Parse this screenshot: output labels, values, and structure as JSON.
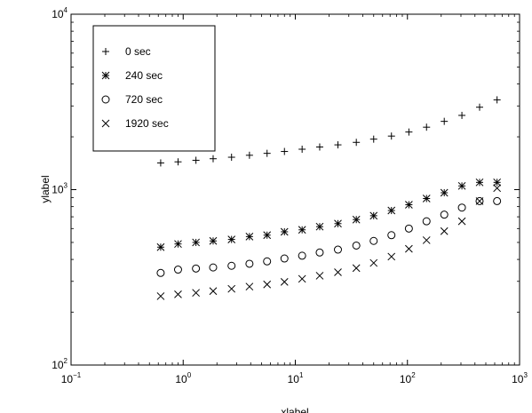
{
  "chart_data": {
    "type": "scatter",
    "xscale": "log",
    "yscale": "log",
    "xlim": [
      0.1,
      1000
    ],
    "ylim": [
      100,
      10000
    ],
    "xlabel": "xlabel",
    "ylabel": "ylabel",
    "x_ticks": [
      {
        "value": 0.1,
        "base": "10",
        "exp": "−1"
      },
      {
        "value": 1,
        "base": "10",
        "exp": "0"
      },
      {
        "value": 10,
        "base": "10",
        "exp": "1"
      },
      {
        "value": 100,
        "base": "10",
        "exp": "2"
      },
      {
        "value": 1000,
        "base": "10",
        "exp": "3"
      }
    ],
    "y_ticks": [
      {
        "value": 100,
        "base": "10",
        "exp": "2"
      },
      {
        "value": 1000,
        "base": "10",
        "exp": "3"
      },
      {
        "value": 10000,
        "base": "10",
        "exp": "4"
      }
    ],
    "grid": false,
    "legend_position": "top-left",
    "x": [
      0.63,
      0.9,
      1.3,
      1.85,
      2.7,
      3.9,
      5.6,
      8.0,
      11.5,
      16.5,
      24,
      35,
      50,
      72,
      103,
      148,
      213,
      306,
      440,
      630
    ],
    "series": [
      {
        "name": "0 sec",
        "marker": "plus",
        "values": [
          1420,
          1440,
          1470,
          1500,
          1530,
          1570,
          1610,
          1650,
          1700,
          1750,
          1800,
          1860,
          1940,
          2020,
          2130,
          2270,
          2450,
          2650,
          2950,
          3250
        ]
      },
      {
        "name": "240 sec",
        "marker": "star",
        "values": [
          470,
          490,
          500,
          510,
          520,
          540,
          550,
          575,
          590,
          615,
          640,
          675,
          710,
          760,
          820,
          890,
          960,
          1050,
          1100,
          1100
        ]
      },
      {
        "name": "720 sec",
        "marker": "circle",
        "values": [
          335,
          350,
          355,
          360,
          368,
          378,
          390,
          405,
          420,
          438,
          455,
          480,
          510,
          550,
          600,
          660,
          720,
          790,
          860,
          860
        ]
      },
      {
        "name": "1920 sec",
        "marker": "x",
        "values": [
          247,
          253,
          258,
          264,
          272,
          280,
          288,
          298,
          310,
          323,
          338,
          357,
          382,
          415,
          460,
          515,
          580,
          660,
          860,
          1020
        ]
      }
    ]
  }
}
